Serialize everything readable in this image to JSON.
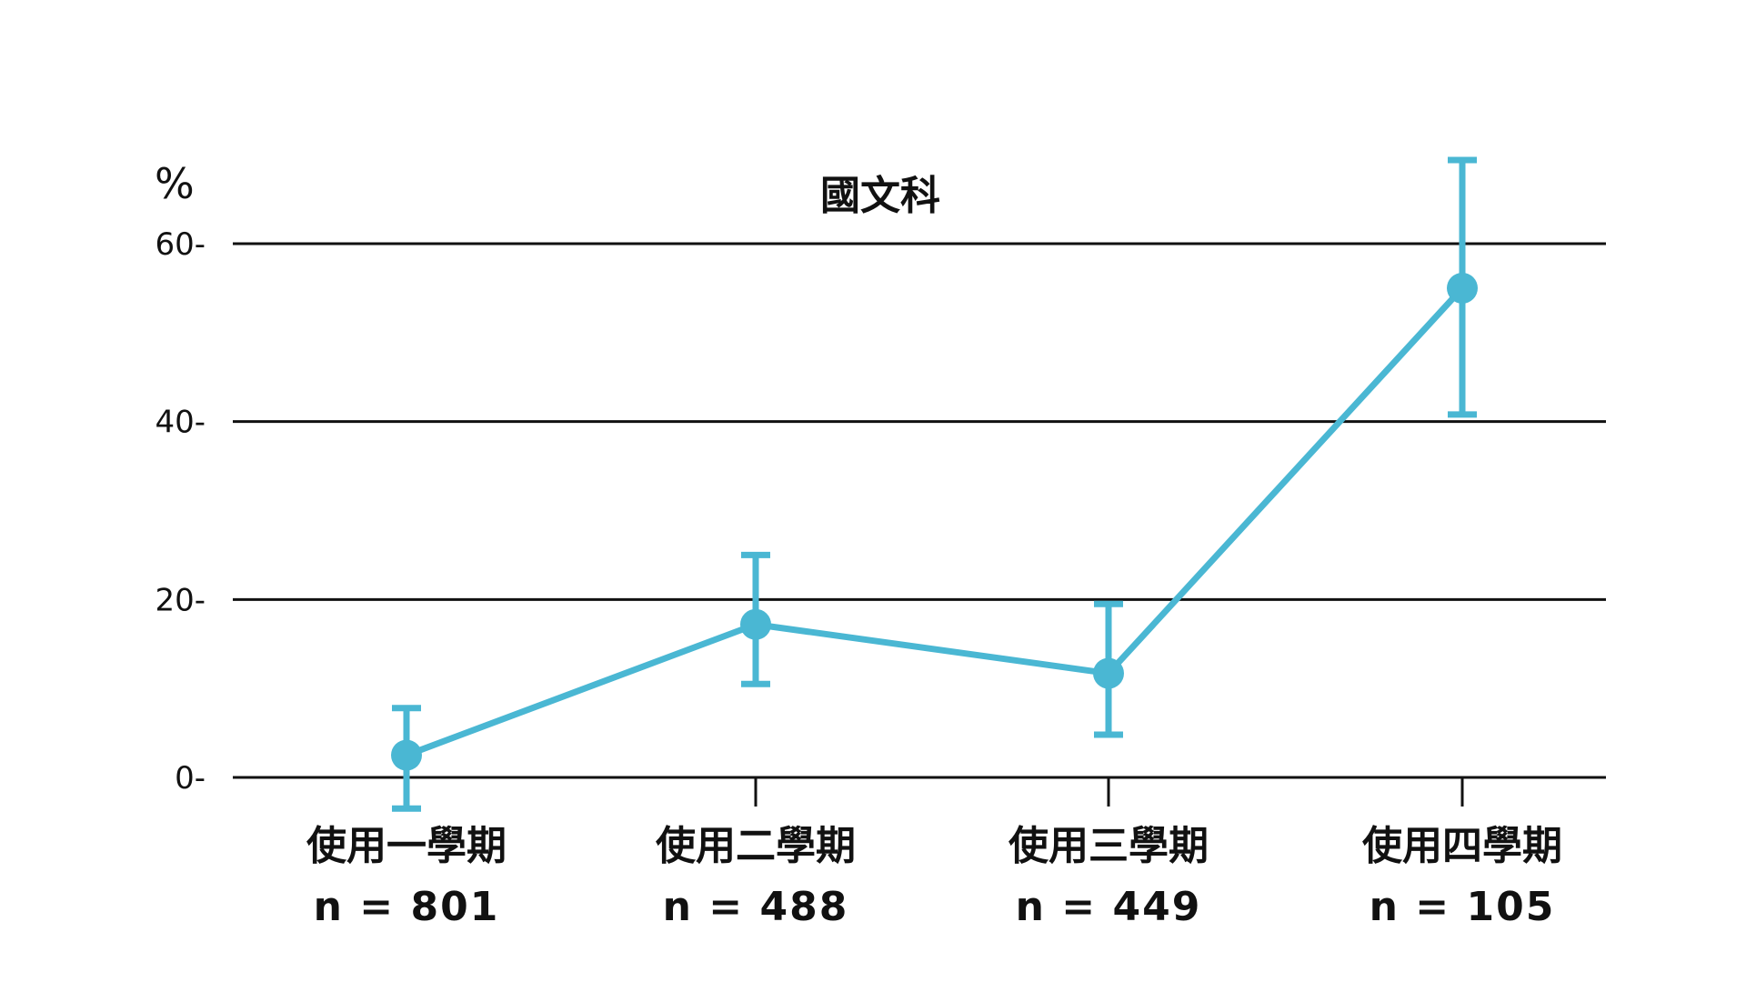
{
  "chart_data": {
    "type": "line",
    "title": "國文科",
    "ylabel": "%",
    "xlabel": "",
    "categories": [
      "使用一學期",
      "使用二學期",
      "使用三學期",
      "使用四學期"
    ],
    "sample_sizes": [
      "n = 801",
      "n = 488",
      "n = 449",
      "n = 105"
    ],
    "ylim": [
      0,
      60
    ],
    "yticks": [
      {
        "value": 0,
        "label": "0-"
      },
      {
        "value": 20,
        "label": "20-"
      },
      {
        "value": 40,
        "label": "40-"
      },
      {
        "value": 60,
        "label": "60-"
      }
    ],
    "grid": true,
    "series": [
      {
        "values": [
          2.5,
          17.2,
          11.7,
          55
        ],
        "error_low": [
          -3.5,
          10.5,
          4.8,
          40.8
        ],
        "error_high": [
          7.8,
          25,
          19.5,
          69.4
        ]
      }
    ],
    "colors": {
      "series": "#4ab7d3",
      "axis": "#111111",
      "background": "#ffffff"
    }
  }
}
